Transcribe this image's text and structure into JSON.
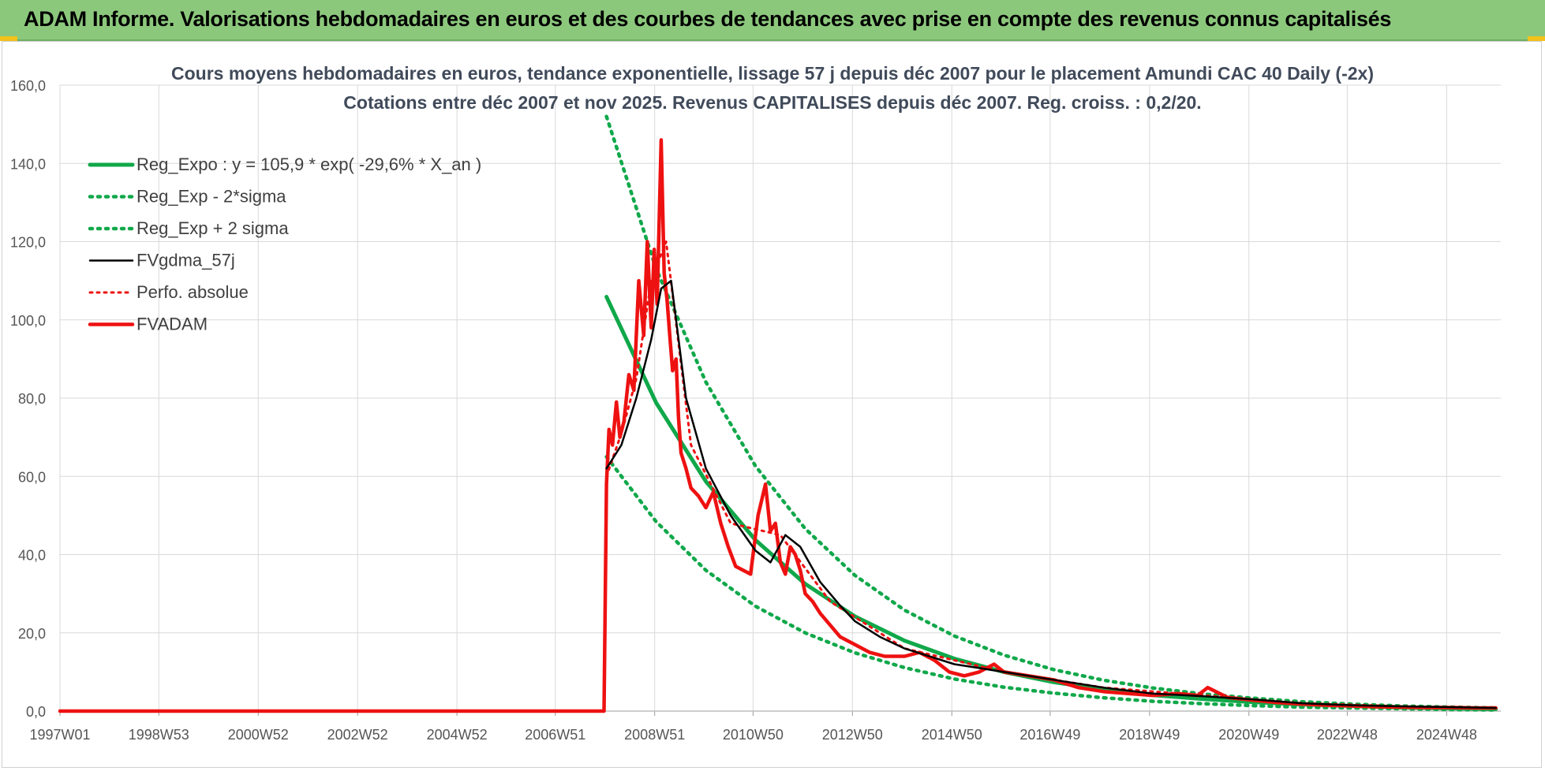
{
  "banner": {
    "title": "ADAM Informe. Valorisations hebdomadaires en euros et des courbes de tendances avec prise en compte des revenus connus capitalisés"
  },
  "colors": {
    "banner": "#8cc87c",
    "green": "#10a84a",
    "red": "#ee1111",
    "black": "#000000",
    "grid": "#d9d9d9",
    "axis_text": "#555555"
  },
  "chart_data": {
    "type": "line",
    "title": "Cours moyens hebdomadaires en euros, tendance exponentielle, lissage 57 j depuis déc 2007 pour le placement Amundi CAC 40 Daily (-2x)",
    "subtitle": "Cotations entre déc 2007 et nov 2025. Revenus CAPITALISES depuis déc 2007. Reg. croiss. : 0,2/20.",
    "xlabel": "",
    "ylabel": "",
    "xlim": [
      1997.0,
      2026.0
    ],
    "ylim": [
      0,
      160
    ],
    "y_ticks": [
      "0,0",
      "20,0",
      "40,0",
      "60,0",
      "80,0",
      "100,0",
      "120,0",
      "140,0",
      "160,0"
    ],
    "x_ticks": [
      {
        "label": "1997W01",
        "x": 1997.0
      },
      {
        "label": "1998W53",
        "x": 1998.99
      },
      {
        "label": "2000W52",
        "x": 2000.99
      },
      {
        "label": "2002W52",
        "x": 2002.99
      },
      {
        "label": "2004W52",
        "x": 2004.99
      },
      {
        "label": "2006W51",
        "x": 2006.97
      },
      {
        "label": "2008W51",
        "x": 2008.97
      },
      {
        "label": "2010W50",
        "x": 2010.95
      },
      {
        "label": "2012W50",
        "x": 2012.95
      },
      {
        "label": "2014W50",
        "x": 2014.95
      },
      {
        "label": "2016W49",
        "x": 2016.93
      },
      {
        "label": "2018W49",
        "x": 2018.93
      },
      {
        "label": "2020W49",
        "x": 2020.93
      },
      {
        "label": "2022W48",
        "x": 2022.91
      },
      {
        "label": "2024W48",
        "x": 2024.91
      }
    ],
    "grid": true,
    "legend_position": "top-left",
    "series": [
      {
        "name": "Reg_Expo : y = 105,9 * exp( -29,6% *  X_an )",
        "style": "solid-green",
        "x": [
          2008.0,
          2009.0,
          2010.0,
          2011.0,
          2012.0,
          2013.0,
          2014.0,
          2015.0,
          2016.0,
          2017.0,
          2018.0,
          2019.0,
          2020.0,
          2021.0,
          2022.0,
          2023.0,
          2024.0,
          2025.0,
          2025.9
        ],
        "values": [
          105.9,
          78.8,
          58.7,
          43.7,
          32.5,
          24.2,
          18.0,
          13.4,
          10.0,
          7.4,
          5.5,
          4.1,
          3.1,
          2.3,
          1.7,
          1.3,
          0.9,
          0.7,
          0.5
        ]
      },
      {
        "name": "Reg_Exp - 2*sigma",
        "style": "dotted-green",
        "x": [
          2008.0,
          2009.0,
          2010.0,
          2011.0,
          2012.0,
          2013.0,
          2014.0,
          2015.0,
          2016.0,
          2017.0,
          2018.0,
          2019.0,
          2020.0,
          2021.0,
          2022.0,
          2023.0,
          2024.0,
          2025.0,
          2025.9
        ],
        "values": [
          65.0,
          48.4,
          36.0,
          26.8,
          20.0,
          14.9,
          11.1,
          8.2,
          6.1,
          4.6,
          3.4,
          2.5,
          1.9,
          1.4,
          1.0,
          0.8,
          0.6,
          0.4,
          0.3
        ]
      },
      {
        "name": "Reg_Exp + 2 sigma",
        "style": "dotted-green",
        "x": [
          2008.0,
          2009.0,
          2010.0,
          2011.0,
          2012.0,
          2013.0,
          2014.0,
          2015.0,
          2016.0,
          2017.0,
          2018.0,
          2019.0,
          2020.0,
          2021.0,
          2022.0,
          2023.0,
          2024.0,
          2025.0,
          2025.9
        ],
        "values": [
          152.0,
          113.0,
          84.1,
          62.6,
          46.6,
          34.7,
          25.8,
          19.2,
          14.3,
          10.6,
          7.9,
          5.9,
          4.4,
          3.3,
          2.4,
          1.8,
          1.3,
          1.0,
          0.8
        ]
      },
      {
        "name": "FVgdma_57j",
        "style": "solid-black",
        "x": [
          2008.0,
          2008.3,
          2008.6,
          2008.9,
          2009.1,
          2009.3,
          2009.6,
          2010.0,
          2010.5,
          2011.0,
          2011.3,
          2011.6,
          2011.9,
          2012.3,
          2012.7,
          2013.0,
          2013.5,
          2014.0,
          2014.5,
          2015.0,
          2015.5,
          2016.0,
          2016.5,
          2017.0,
          2018.0,
          2019.0,
          2020.0,
          2021.0,
          2022.0,
          2023.0,
          2024.0,
          2025.0,
          2025.9
        ],
        "values": [
          62,
          68,
          80,
          95,
          108,
          110,
          80,
          62,
          50,
          41,
          38,
          45,
          42,
          33,
          27,
          23,
          19,
          16,
          14,
          12,
          11,
          10,
          9,
          8,
          6,
          4.5,
          3.8,
          3,
          2,
          1.5,
          1.2,
          1,
          0.8
        ]
      },
      {
        "name": "Perfo. absolue",
        "style": "dotted-red",
        "x": [
          2008.0,
          2008.3,
          2008.6,
          2008.9,
          2009.2,
          2009.7,
          2010.5,
          2011.5,
          2012.5,
          2014.0,
          2016.0,
          2018.0,
          2020.0,
          2022.0,
          2024.0,
          2025.9
        ],
        "values": [
          60,
          71,
          85,
          110,
          120,
          68,
          48,
          45,
          28,
          16,
          10,
          6,
          4,
          2,
          1.2,
          0.8
        ]
      },
      {
        "name": "FVADAM",
        "style": "solid-red",
        "x": [
          1997.0,
          2007.95,
          2008.0,
          2008.05,
          2008.12,
          2008.2,
          2008.27,
          2008.35,
          2008.45,
          2008.55,
          2008.65,
          2008.75,
          2008.82,
          2008.9,
          2008.96,
          2009.02,
          2009.1,
          2009.16,
          2009.22,
          2009.28,
          2009.33,
          2009.4,
          2009.45,
          2009.5,
          2009.6,
          2009.7,
          2009.85,
          2010.0,
          2010.15,
          2010.3,
          2010.45,
          2010.6,
          2010.75,
          2010.9,
          2011.05,
          2011.2,
          2011.3,
          2011.4,
          2011.5,
          2011.6,
          2011.7,
          2011.8,
          2011.9,
          2012.0,
          2012.15,
          2012.3,
          2012.5,
          2012.7,
          2013.0,
          2013.3,
          2013.6,
          2014.0,
          2014.3,
          2014.6,
          2014.9,
          2015.2,
          2015.5,
          2015.8,
          2016.0,
          2016.5,
          2017.0,
          2017.5,
          2018.0,
          2018.5,
          2019.0,
          2019.5,
          2019.9,
          2020.1,
          2020.5,
          2021.0,
          2021.5,
          2022.0,
          2022.5,
          2023.0,
          2023.5,
          2024.0,
          2024.5,
          2025.0,
          2025.5,
          2025.9
        ],
        "values": [
          0,
          0,
          58,
          72,
          68,
          79,
          70,
          74,
          86,
          82,
          110,
          96,
          120,
          98,
          118,
          104,
          146,
          112,
          105,
          95,
          87,
          90,
          75,
          66,
          62,
          57,
          55,
          52,
          56,
          48,
          42,
          37,
          36,
          35,
          50,
          58,
          46,
          48,
          38,
          35,
          42,
          40,
          36,
          30,
          28,
          25,
          22,
          19,
          17,
          15,
          14,
          14,
          15,
          13,
          10,
          9,
          10,
          12,
          10,
          9,
          8,
          6,
          5,
          4.5,
          4,
          4.5,
          4,
          6,
          3.5,
          2.8,
          2.2,
          1.8,
          1.5,
          1.3,
          1.1,
          1.0,
          0.9,
          0.9,
          0.8,
          0.8
        ]
      }
    ]
  }
}
